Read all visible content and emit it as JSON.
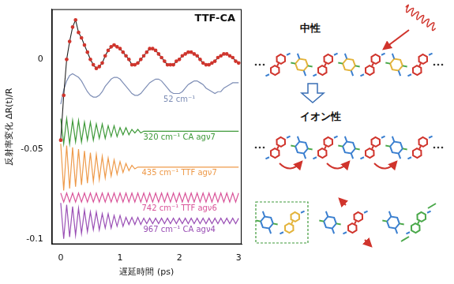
{
  "chart_data": {
    "type": "line",
    "title": "TTF-CA",
    "x_label": "遅延時間 (ps)",
    "y_label": "反射率変化 ΔR(t)/R",
    "x": [
      0,
      0.05,
      0.1,
      0.15,
      0.2,
      0.25,
      0.3,
      0.35,
      0.4,
      0.45,
      0.5,
      0.55,
      0.6,
      0.65,
      0.7,
      0.75,
      0.8,
      0.85,
      0.9,
      0.95,
      1.0,
      1.05,
      1.1,
      1.15,
      1.2,
      1.25,
      1.3,
      1.35,
      1.4,
      1.45,
      1.5,
      1.55,
      1.6,
      1.65,
      1.7,
      1.75,
      1.8,
      1.85,
      1.9,
      1.95,
      2.0,
      2.05,
      2.1,
      2.15,
      2.2,
      2.25,
      2.3,
      2.35,
      2.4,
      2.45,
      2.5,
      2.55,
      2.6,
      2.65,
      2.7,
      2.75,
      2.8,
      2.85,
      2.9,
      2.95,
      3.0
    ],
    "series": [
      {
        "color": "#d0342c",
        "marker": "circle",
        "values": [
          -0.045,
          -0.02,
          0.0,
          0.01,
          0.018,
          0.022,
          0.015,
          0.012,
          0.008,
          0.004,
          0.0,
          -0.003,
          -0.005,
          -0.004,
          -0.002,
          0.002,
          0.005,
          0.007,
          0.008,
          0.007,
          0.006,
          0.004,
          0.002,
          0.0,
          -0.003,
          -0.003,
          -0.002,
          0.0,
          0.002,
          0.004,
          0.006,
          0.006,
          0.005,
          0.003,
          0.001,
          -0.001,
          -0.003,
          -0.003,
          -0.003,
          -0.001,
          0.0,
          0.002,
          0.003,
          0.004,
          0.004,
          0.003,
          0.002,
          0.0,
          -0.002,
          -0.003,
          -0.003,
          -0.002,
          -0.001,
          0.001,
          0.002,
          0.003,
          0.003,
          0.002,
          0.001,
          -0.001,
          -0.002
        ]
      },
      {
        "name": "52 cm⁻¹",
        "color": "#7d8db5",
        "marker": "none",
        "values": [
          -0.025,
          -0.017,
          -0.012,
          -0.009,
          -0.008,
          -0.009,
          -0.01,
          -0.012,
          -0.015,
          -0.018,
          -0.02,
          -0.021,
          -0.021,
          -0.02,
          -0.018,
          -0.015,
          -0.013,
          -0.011,
          -0.01,
          -0.01,
          -0.011,
          -0.013,
          -0.015,
          -0.017,
          -0.019,
          -0.02,
          -0.02,
          -0.019,
          -0.017,
          -0.015,
          -0.013,
          -0.012,
          -0.011,
          -0.011,
          -0.012,
          -0.014,
          -0.016,
          -0.018,
          -0.019,
          -0.019,
          -0.019,
          -0.018,
          -0.016,
          -0.014,
          -0.013,
          -0.012,
          -0.012,
          -0.013,
          -0.014,
          -0.016,
          -0.017,
          -0.018,
          -0.019,
          -0.018,
          -0.018,
          -0.016,
          -0.015,
          -0.014,
          -0.013,
          -0.013,
          -0.013
        ]
      },
      {
        "name": "320 cm⁻¹ CA agν7",
        "color": "#3f9a3a",
        "marker": "none",
        "values": [
          -0.033,
          -0.047,
          -0.033,
          -0.047,
          -0.034,
          -0.046,
          -0.034,
          -0.046,
          -0.035,
          -0.045,
          -0.035,
          -0.045,
          -0.036,
          -0.044,
          -0.036,
          -0.044,
          -0.037,
          -0.043,
          -0.037,
          -0.043,
          -0.038,
          -0.042,
          -0.038,
          -0.042,
          -0.039,
          -0.041,
          -0.039,
          -0.041,
          -0.04,
          -0.04,
          -0.04,
          -0.04,
          -0.04,
          -0.04,
          -0.04,
          -0.04,
          -0.04,
          -0.04,
          -0.04,
          -0.04,
          -0.04,
          -0.04,
          -0.04,
          -0.04,
          -0.04,
          -0.04,
          -0.04,
          -0.04,
          -0.04,
          -0.04,
          -0.04,
          -0.04,
          -0.04,
          -0.04,
          -0.04,
          -0.04,
          -0.04,
          -0.04,
          -0.04,
          -0.04,
          -0.04
        ]
      },
      {
        "name": "435 cm⁻¹ TTF agν7",
        "color": "#ee9a4a",
        "marker": "none",
        "values": [
          -0.047,
          -0.073,
          -0.048,
          -0.072,
          -0.049,
          -0.071,
          -0.05,
          -0.07,
          -0.051,
          -0.069,
          -0.052,
          -0.068,
          -0.053,
          -0.067,
          -0.054,
          -0.066,
          -0.055,
          -0.065,
          -0.056,
          -0.064,
          -0.057,
          -0.063,
          -0.058,
          -0.062,
          -0.059,
          -0.061,
          -0.06,
          -0.06,
          -0.06,
          -0.06,
          -0.06,
          -0.06,
          -0.06,
          -0.06,
          -0.06,
          -0.06,
          -0.06,
          -0.06,
          -0.06,
          -0.06,
          -0.06,
          -0.06,
          -0.06,
          -0.06,
          -0.06,
          -0.06,
          -0.06,
          -0.06,
          -0.06,
          -0.06,
          -0.06,
          -0.06,
          -0.06,
          -0.06,
          -0.06,
          -0.06,
          -0.06,
          -0.06,
          -0.06,
          -0.06,
          -0.06
        ]
      },
      {
        "name": "742 cm⁻¹ TTF agν6",
        "color": "#d9559a",
        "marker": "none",
        "values": [
          -0.0745,
          -0.0795,
          -0.0745,
          -0.0795,
          -0.0745,
          -0.0795,
          -0.0745,
          -0.0795,
          -0.0745,
          -0.0795,
          -0.0745,
          -0.0795,
          -0.0745,
          -0.0795,
          -0.0745,
          -0.0795,
          -0.0745,
          -0.0795,
          -0.0745,
          -0.0795,
          -0.0745,
          -0.0795,
          -0.0745,
          -0.0795,
          -0.0745,
          -0.0795,
          -0.0745,
          -0.0795,
          -0.0745,
          -0.0795,
          -0.0745,
          -0.0795,
          -0.0745,
          -0.0795,
          -0.0745,
          -0.0795,
          -0.0745,
          -0.0795,
          -0.0745,
          -0.0795,
          -0.0745,
          -0.0795,
          -0.0745,
          -0.0795,
          -0.0745,
          -0.0795,
          -0.0745,
          -0.0795,
          -0.0745,
          -0.0795,
          -0.0745,
          -0.0795,
          -0.0745,
          -0.0795,
          -0.0745,
          -0.0795,
          -0.0745,
          -0.0795,
          -0.0745,
          -0.0795,
          -0.0745
        ]
      },
      {
        "name": "967 cm⁻¹ CA agν4",
        "color": "#9a4fb5",
        "marker": "none",
        "values": [
          -0.08,
          -0.1,
          -0.081,
          -0.099,
          -0.082,
          -0.098,
          -0.083,
          -0.097,
          -0.084,
          -0.096,
          -0.085,
          -0.095,
          -0.085,
          -0.095,
          -0.086,
          -0.094,
          -0.086,
          -0.094,
          -0.087,
          -0.093,
          -0.087,
          -0.093,
          -0.088,
          -0.092,
          -0.088,
          -0.092,
          -0.088,
          -0.092,
          -0.0885,
          -0.0915,
          -0.0885,
          -0.0915,
          -0.0885,
          -0.0915,
          -0.0885,
          -0.0915,
          -0.0885,
          -0.0915,
          -0.0885,
          -0.0915,
          -0.0885,
          -0.0915,
          -0.0885,
          -0.0915,
          -0.0885,
          -0.0915,
          -0.0885,
          -0.0915,
          -0.0885,
          -0.0915,
          -0.0885,
          -0.0915,
          -0.0885,
          -0.0915,
          -0.0885,
          -0.0915,
          -0.0885,
          -0.0915,
          -0.0885,
          -0.0915,
          -0.0885
        ]
      }
    ],
    "xlim": [
      -0.15,
      3.05
    ],
    "xticks": [
      0,
      1,
      2,
      3
    ],
    "ylim": [
      -0.103,
      0.028
    ],
    "yticks": [
      -0.1,
      -0.05,
      0
    ],
    "grid": false
  },
  "diagram": {
    "states": [
      "中性",
      "イオン性"
    ]
  }
}
